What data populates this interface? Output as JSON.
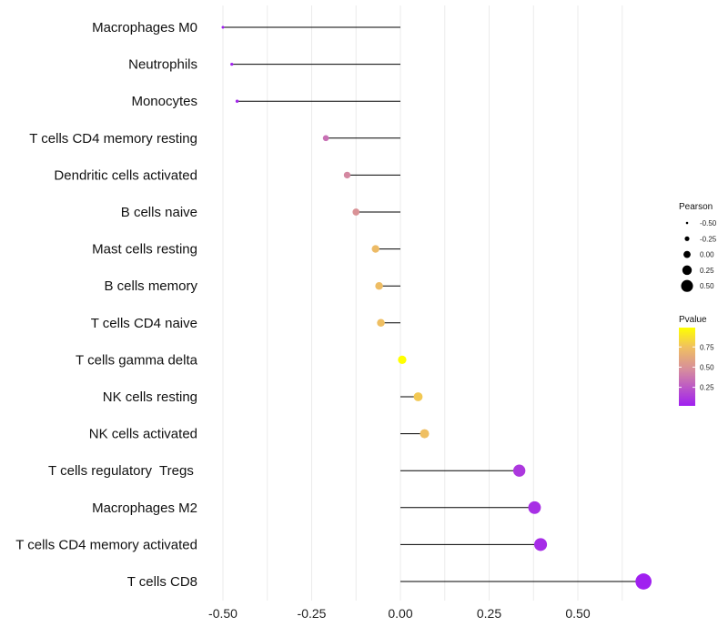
{
  "chart_data": {
    "type": "lollipop",
    "title": "",
    "xlabel": "",
    "ylabel": "",
    "xlim": [
      -0.52,
      0.71
    ],
    "xticks": [
      -0.5,
      -0.25,
      0.0,
      0.25,
      0.5
    ],
    "xtick_labels": [
      "-0.50",
      "-0.25",
      "0.00",
      "0.25",
      "0.50"
    ],
    "categories": [
      "Macrophages M0",
      "Neutrophils",
      "Monocytes",
      "T cells CD4 memory resting",
      "Dendritic cells activated",
      "B cells naive",
      "Mast cells resting",
      "B cells memory",
      "T cells CD4 naive",
      "T cells gamma delta",
      "NK cells resting",
      "NK cells activated",
      "T cells regulatory  Tregs ",
      "Macrophages M2",
      "T cells CD4 memory activated",
      "T cells CD8"
    ],
    "pearson": [
      -0.5,
      -0.475,
      -0.46,
      -0.21,
      -0.15,
      -0.125,
      -0.07,
      -0.06,
      -0.055,
      0.005,
      0.05,
      0.068,
      0.335,
      0.378,
      0.395,
      0.685
    ],
    "pvalue": [
      0.02,
      0.03,
      0.05,
      0.35,
      0.45,
      0.5,
      0.72,
      0.73,
      0.74,
      0.99,
      0.78,
      0.74,
      0.12,
      0.08,
      0.07,
      0.02
    ],
    "grid": true,
    "legend": {
      "position": "right",
      "size": {
        "title": "Pearson",
        "labels": [
          "-0.50",
          "-0.25",
          "0.00",
          "0.25",
          "0.50"
        ],
        "values": [
          -0.5,
          -0.25,
          0.0,
          0.25,
          0.5
        ]
      },
      "color": {
        "title": "Pvalue",
        "labels": [
          "0.75",
          "0.50",
          "0.25"
        ],
        "values": [
          0.75,
          0.5,
          0.25
        ],
        "range": [
          0.02,
          0.99
        ],
        "colors": [
          "#a020f0",
          "#d58aa0",
          "#f0c060",
          "#ffff00"
        ]
      }
    }
  }
}
